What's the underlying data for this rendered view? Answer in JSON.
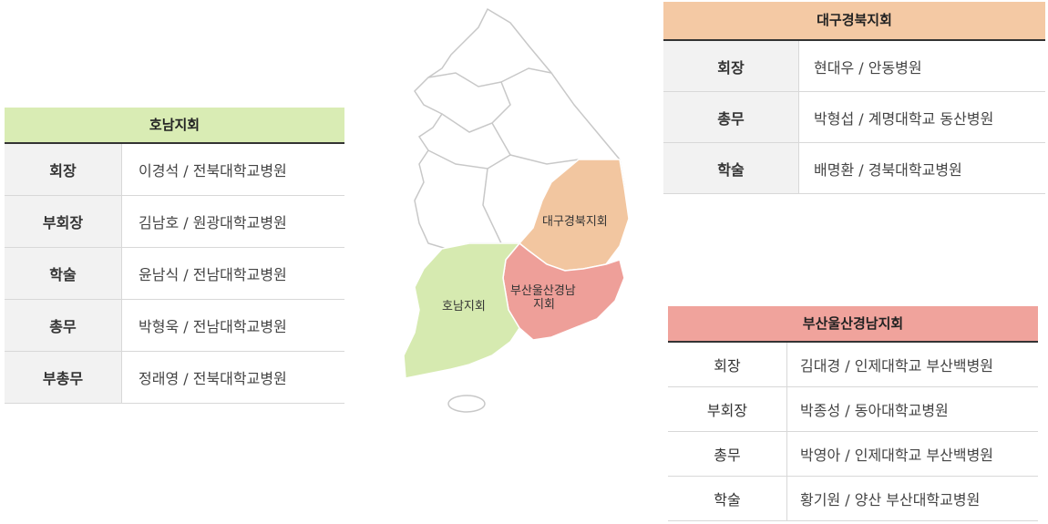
{
  "honam": {
    "title": "호남지회",
    "rows": [
      {
        "role": "회장",
        "person": "이경석 / 전북대학교병원"
      },
      {
        "role": "부회장",
        "person": "김남호 / 원광대학교병원"
      },
      {
        "role": "학술",
        "person": "윤남식 / 전남대학교병원"
      },
      {
        "role": "총무",
        "person": "박형욱 / 전남대학교병원"
      },
      {
        "role": "부총무",
        "person": "정래영 / 전북대학교병원"
      }
    ]
  },
  "daegu": {
    "title": "대구경북지회",
    "rows": [
      {
        "role": "회장",
        "person": "현대우 / 안동병원"
      },
      {
        "role": "총무",
        "person": "박형섭 / 계명대학교 동산병원"
      },
      {
        "role": "학술",
        "person": "배명환 / 경북대학교병원"
      }
    ]
  },
  "busan": {
    "title": "부산울산경남지회",
    "rows": [
      {
        "role": "회장",
        "person": "김대경 / 인제대학교 부산백병원"
      },
      {
        "role": "부회장",
        "person": "박종성 / 동아대학교병원"
      },
      {
        "role": "총무",
        "person": "박영아 / 인제대학교 부산백병원"
      },
      {
        "role": "학술",
        "person": "황기원 / 양산 부산대학교병원"
      }
    ]
  },
  "map": {
    "label_daegu": "대구경북지회",
    "label_busan_line1": "부산울산경남",
    "label_busan_line2": "지회",
    "label_honam": "호남지회",
    "colors": {
      "honam": "#d6eab0",
      "daegu": "#f2c6a0",
      "busan": "#ee9f99",
      "other": "#ffffff"
    }
  }
}
